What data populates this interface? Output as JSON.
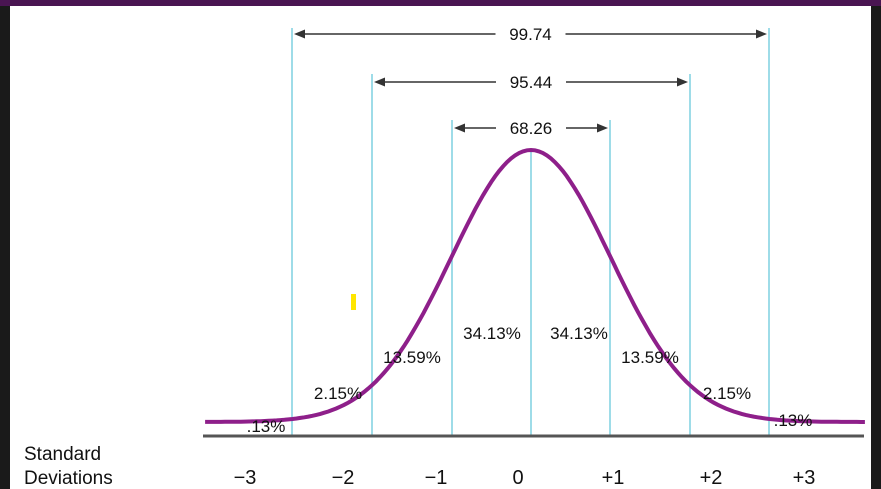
{
  "chart_data": {
    "type": "area",
    "distribution": "normal",
    "x_ticks": [
      {
        "value": -3,
        "label": "−3"
      },
      {
        "value": -2,
        "label": "−2"
      },
      {
        "value": -1,
        "label": "−1"
      },
      {
        "value": 0,
        "label": "0"
      },
      {
        "value": 1,
        "label": "+1"
      },
      {
        "value": 2,
        "label": "+2"
      },
      {
        "value": 3,
        "label": "+3"
      }
    ],
    "xlabel_line1": "Standard",
    "xlabel_line2": "Deviations",
    "xlim": [
      -3.5,
      3.5
    ],
    "segments": [
      {
        "from": -3.5,
        "to": -3,
        "label": ".13%"
      },
      {
        "from": -3,
        "to": -2,
        "label": "2.15%"
      },
      {
        "from": -2,
        "to": -1,
        "label": "13.59%"
      },
      {
        "from": -1,
        "to": 0,
        "label": "34.13%"
      },
      {
        "from": 0,
        "to": 1,
        "label": "34.13%"
      },
      {
        "from": 1,
        "to": 2,
        "label": "13.59%"
      },
      {
        "from": 2,
        "to": 3,
        "label": "2.15%"
      },
      {
        "from": 3,
        "to": 3.5,
        "label": ".13%"
      }
    ],
    "spans": [
      {
        "from": -3,
        "to": 3,
        "label": "99.74"
      },
      {
        "from": -2,
        "to": 2,
        "label": "95.44"
      },
      {
        "from": -1,
        "to": 1,
        "label": "68.26"
      }
    ],
    "colors": {
      "curve": "#8e1f8a",
      "guide_lines": "#7fd0e0",
      "axis": "#555555",
      "arrows": "#333333",
      "marker": "#ffe600",
      "frame": "#4a1552"
    }
  }
}
